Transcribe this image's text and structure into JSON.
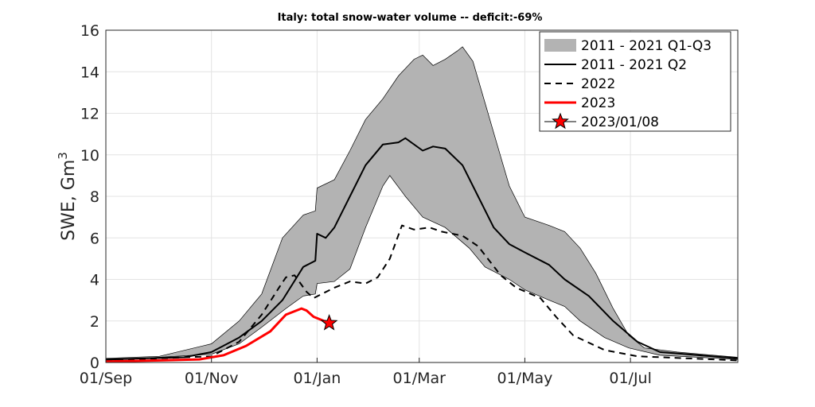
{
  "chart_data": {
    "type": "line",
    "title": "Italy: total snow-water volume -- deficit:-69%",
    "xlabel": "",
    "ylabel": "SWE, Gm",
    "ylabel_sup": "3",
    "x_unit": "days since 01/Sep",
    "xlim": [
      0,
      365
    ],
    "ylim": [
      0,
      16
    ],
    "grid": true,
    "legend_position": "top-right",
    "xticks": [
      {
        "day": 0,
        "label": "01/Sep"
      },
      {
        "day": 61,
        "label": "01/Nov"
      },
      {
        "day": 122,
        "label": "01/Jan"
      },
      {
        "day": 181,
        "label": "01/Mar"
      },
      {
        "day": 242,
        "label": "01/May"
      },
      {
        "day": 303,
        "label": "01/Jul"
      }
    ],
    "yticks": [
      0,
      2,
      4,
      6,
      8,
      10,
      12,
      14,
      16
    ],
    "band": {
      "name": "2011 - 2021 Q1-Q3",
      "color": "#b3b3b3",
      "upper": [
        [
          0,
          0.2
        ],
        [
          31,
          0.3
        ],
        [
          61,
          0.9
        ],
        [
          77,
          2.0
        ],
        [
          90,
          3.3
        ],
        [
          102,
          6.0
        ],
        [
          114,
          7.1
        ],
        [
          121,
          7.3
        ],
        [
          122,
          8.4
        ],
        [
          132,
          8.8
        ],
        [
          141,
          10.2
        ],
        [
          150,
          11.7
        ],
        [
          160,
          12.7
        ],
        [
          169,
          13.8
        ],
        [
          178,
          14.6
        ],
        [
          183,
          14.8
        ],
        [
          189,
          14.3
        ],
        [
          196,
          14.6
        ],
        [
          203,
          15.0
        ],
        [
          206,
          15.2
        ],
        [
          212,
          14.5
        ],
        [
          219,
          12.5
        ],
        [
          226,
          10.5
        ],
        [
          233,
          8.5
        ],
        [
          242,
          7.0
        ],
        [
          256,
          6.6
        ],
        [
          265,
          6.3
        ],
        [
          274,
          5.5
        ],
        [
          283,
          4.3
        ],
        [
          293,
          2.6
        ],
        [
          302,
          1.3
        ],
        [
          311,
          0.7
        ],
        [
          330,
          0.5
        ],
        [
          365,
          0.25
        ]
      ],
      "lower": [
        [
          0,
          0.1
        ],
        [
          61,
          0.4
        ],
        [
          77,
          0.9
        ],
        [
          90,
          1.7
        ],
        [
          104,
          2.6
        ],
        [
          114,
          3.2
        ],
        [
          121,
          3.3
        ],
        [
          122,
          3.8
        ],
        [
          132,
          3.9
        ],
        [
          141,
          4.5
        ],
        [
          150,
          6.5
        ],
        [
          160,
          8.5
        ],
        [
          164,
          9.0
        ],
        [
          173,
          8.0
        ],
        [
          183,
          7.0
        ],
        [
          196,
          6.5
        ],
        [
          210,
          5.5
        ],
        [
          219,
          4.6
        ],
        [
          233,
          4.0
        ],
        [
          242,
          3.5
        ],
        [
          256,
          3.0
        ],
        [
          265,
          2.7
        ],
        [
          274,
          2.0
        ],
        [
          288,
          1.2
        ],
        [
          302,
          0.7
        ],
        [
          320,
          0.35
        ],
        [
          365,
          0.15
        ]
      ]
    },
    "series": [
      {
        "name": "2011 - 2021 Q2",
        "color": "#000000",
        "style": "solid",
        "points": [
          [
            0,
            0.15
          ],
          [
            45,
            0.25
          ],
          [
            61,
            0.5
          ],
          [
            77,
            1.2
          ],
          [
            90,
            2.0
          ],
          [
            102,
            3.0
          ],
          [
            114,
            4.6
          ],
          [
            121,
            4.9
          ],
          [
            122,
            6.2
          ],
          [
            127,
            6.0
          ],
          [
            132,
            6.5
          ],
          [
            141,
            8.0
          ],
          [
            150,
            9.5
          ],
          [
            160,
            10.5
          ],
          [
            169,
            10.6
          ],
          [
            173,
            10.8
          ],
          [
            183,
            10.2
          ],
          [
            189,
            10.4
          ],
          [
            196,
            10.3
          ],
          [
            206,
            9.5
          ],
          [
            215,
            8.0
          ],
          [
            224,
            6.5
          ],
          [
            233,
            5.7
          ],
          [
            242,
            5.3
          ],
          [
            256,
            4.7
          ],
          [
            265,
            4.0
          ],
          [
            279,
            3.2
          ],
          [
            293,
            2.0
          ],
          [
            307,
            1.0
          ],
          [
            320,
            0.5
          ],
          [
            365,
            0.2
          ]
        ]
      },
      {
        "name": "2022",
        "color": "#000000",
        "style": "dashed",
        "points": [
          [
            0,
            0.1
          ],
          [
            61,
            0.3
          ],
          [
            77,
            1.0
          ],
          [
            90,
            2.3
          ],
          [
            100,
            3.6
          ],
          [
            104,
            4.1
          ],
          [
            109,
            4.2
          ],
          [
            116,
            3.4
          ],
          [
            120,
            3.1
          ],
          [
            132,
            3.6
          ],
          [
            141,
            3.9
          ],
          [
            150,
            3.8
          ],
          [
            157,
            4.1
          ],
          [
            164,
            5.0
          ],
          [
            171,
            6.6
          ],
          [
            178,
            6.4
          ],
          [
            187,
            6.5
          ],
          [
            194,
            6.3
          ],
          [
            206,
            6.1
          ],
          [
            215,
            5.6
          ],
          [
            228,
            4.2
          ],
          [
            237,
            3.6
          ],
          [
            251,
            3.1
          ],
          [
            260,
            2.2
          ],
          [
            270,
            1.3
          ],
          [
            288,
            0.6
          ],
          [
            307,
            0.3
          ],
          [
            365,
            0.1
          ]
        ]
      },
      {
        "name": "2023",
        "color": "#ff0000",
        "style": "solid",
        "points": [
          [
            0,
            0.05
          ],
          [
            31,
            0.1
          ],
          [
            54,
            0.15
          ],
          [
            68,
            0.35
          ],
          [
            81,
            0.8
          ],
          [
            95,
            1.5
          ],
          [
            104,
            2.3
          ],
          [
            113,
            2.6
          ],
          [
            116,
            2.5
          ],
          [
            120,
            2.2
          ],
          [
            129,
            1.9
          ]
        ]
      }
    ],
    "marker": {
      "name": "2023/01/08",
      "day": 129,
      "value": 1.9,
      "color": "#ff0000"
    }
  }
}
